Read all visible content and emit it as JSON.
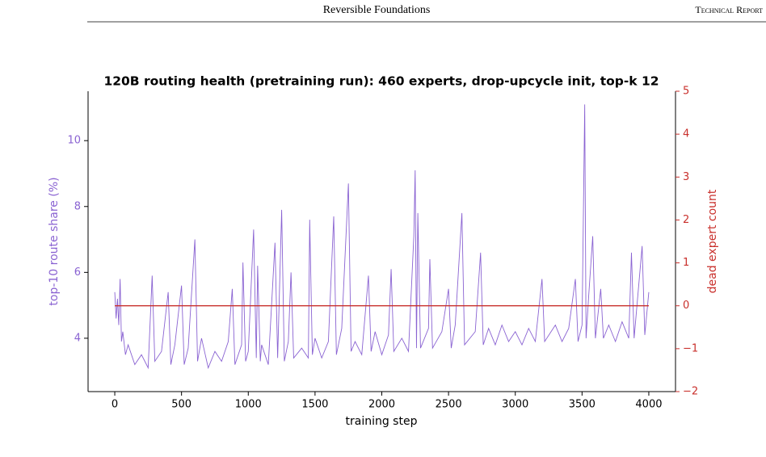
{
  "header": {
    "title": "Reversible Foundations",
    "tag": "Technical Report"
  },
  "chart_data": {
    "type": "line",
    "title": "120B routing health (pretraining run): 460 experts, drop-upcycle init, top-k 12",
    "x_label": "training step",
    "y_label": "top-10 route share (%)",
    "y2_label": "dead expert count",
    "xlim": [
      -200,
      4200
    ],
    "xticks": [
      0,
      500,
      1000,
      1500,
      2000,
      2500,
      3000,
      3500,
      4000
    ],
    "ylim": [
      2.38,
      11.5
    ],
    "yticks": [
      4,
      6,
      8,
      10
    ],
    "y2lim": [
      -2,
      5
    ],
    "y2ticks": [
      {
        "value": -2,
        "label": "−2"
      },
      {
        "value": -1,
        "label": "−1"
      },
      0,
      1,
      2,
      3,
      4,
      5
    ],
    "y_color": "#8a63d2",
    "y2_color": "#c9302c",
    "series": [
      {
        "name": "top-10 route share",
        "color": "#8a63d2",
        "x": [
          0,
          10,
          20,
          30,
          40,
          50,
          60,
          80,
          100,
          150,
          200,
          250,
          280,
          300,
          350,
          400,
          420,
          450,
          500,
          520,
          550,
          600,
          620,
          650,
          700,
          750,
          800,
          850,
          880,
          900,
          950,
          960,
          980,
          1000,
          1040,
          1060,
          1070,
          1090,
          1100,
          1150,
          1200,
          1220,
          1250,
          1270,
          1300,
          1320,
          1340,
          1400,
          1450,
          1460,
          1480,
          1500,
          1550,
          1600,
          1640,
          1660,
          1700,
          1750,
          1770,
          1800,
          1850,
          1900,
          1920,
          1950,
          2000,
          2050,
          2070,
          2090,
          2150,
          2200,
          2240,
          2250,
          2260,
          2270,
          2290,
          2350,
          2360,
          2380,
          2450,
          2500,
          2520,
          2550,
          2600,
          2620,
          2700,
          2740,
          2760,
          2800,
          2850,
          2900,
          2950,
          3000,
          3050,
          3100,
          3150,
          3200,
          3220,
          3300,
          3350,
          3400,
          3450,
          3470,
          3500,
          3520,
          3530,
          3550,
          3580,
          3600,
          3640,
          3660,
          3700,
          3750,
          3800,
          3850,
          3870,
          3890,
          3950,
          3970,
          4000
        ],
        "values": [
          5.4,
          4.6,
          5.2,
          4.4,
          5.8,
          3.9,
          4.2,
          3.5,
          3.8,
          3.2,
          3.5,
          3.1,
          5.9,
          3.3,
          3.6,
          5.4,
          3.2,
          3.8,
          5.6,
          3.2,
          3.7,
          7.0,
          3.3,
          4.0,
          3.1,
          3.6,
          3.3,
          3.9,
          5.5,
          3.2,
          3.8,
          6.3,
          3.3,
          3.6,
          7.3,
          3.4,
          6.2,
          3.3,
          3.8,
          3.2,
          6.9,
          3.4,
          7.9,
          3.3,
          3.9,
          6.0,
          3.4,
          3.7,
          3.4,
          7.6,
          3.5,
          4.0,
          3.4,
          3.9,
          7.7,
          3.5,
          4.3,
          8.7,
          3.6,
          3.9,
          3.5,
          5.9,
          3.6,
          4.2,
          3.5,
          4.1,
          6.1,
          3.6,
          4.0,
          3.6,
          7.1,
          9.1,
          3.7,
          7.8,
          3.7,
          4.3,
          6.4,
          3.7,
          4.2,
          5.5,
          3.7,
          4.4,
          7.8,
          3.8,
          4.2,
          6.6,
          3.8,
          4.3,
          3.8,
          4.4,
          3.9,
          4.2,
          3.8,
          4.3,
          3.9,
          5.8,
          3.9,
          4.4,
          3.9,
          4.3,
          5.8,
          3.9,
          4.4,
          11.1,
          4.0,
          5.3,
          7.1,
          4.0,
          5.5,
          4.0,
          4.4,
          3.9,
          4.5,
          4.0,
          6.6,
          4.0,
          6.8,
          4.1,
          5.4
        ]
      },
      {
        "name": "dead expert count",
        "color": "#c9302c",
        "axis": "y2",
        "x": [
          0,
          4000
        ],
        "values": [
          0,
          0
        ]
      }
    ]
  }
}
